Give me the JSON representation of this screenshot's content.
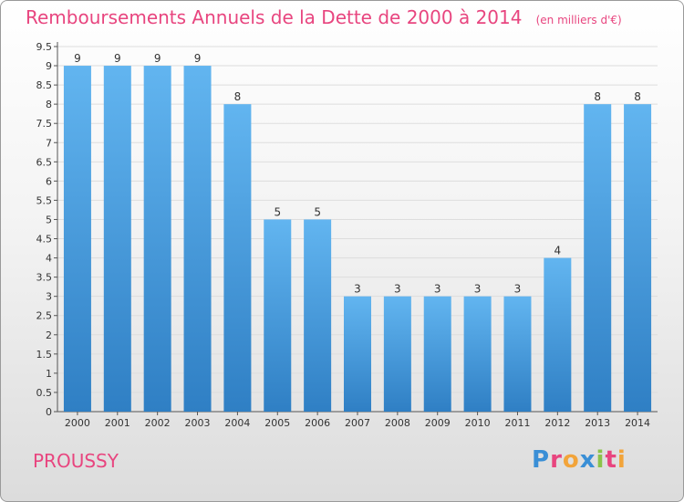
{
  "chart_data": {
    "type": "bar",
    "title": "Remboursements Annuels de la Dette de 2000 à 2014",
    "subtitle": "(en milliers d'€)",
    "categories": [
      "2000",
      "2001",
      "2002",
      "2003",
      "2004",
      "2005",
      "2006",
      "2007",
      "2008",
      "2009",
      "2010",
      "2011",
      "2012",
      "2013",
      "2014"
    ],
    "values": [
      9,
      9,
      9,
      9,
      8,
      5,
      5,
      3,
      3,
      3,
      3,
      3,
      4,
      8,
      8
    ],
    "y_ticks": [
      "0",
      "0.5",
      "1",
      "1.5",
      "2",
      "2.5",
      "3",
      "3.5",
      "4",
      "4.5",
      "5",
      "5.5",
      "6",
      "6.5",
      "7",
      "7.5",
      "8",
      "8.5",
      "9",
      "9.5"
    ],
    "ylim": [
      0,
      9.5
    ],
    "grid": true,
    "bar_color": "#3d8fd2",
    "bar_color_light": "#5fb2ef"
  },
  "footer": {
    "place": "PROUSSY",
    "logo": "Proxiti"
  },
  "colors": {
    "title": "#e8457f",
    "grid": "#dddddd"
  }
}
